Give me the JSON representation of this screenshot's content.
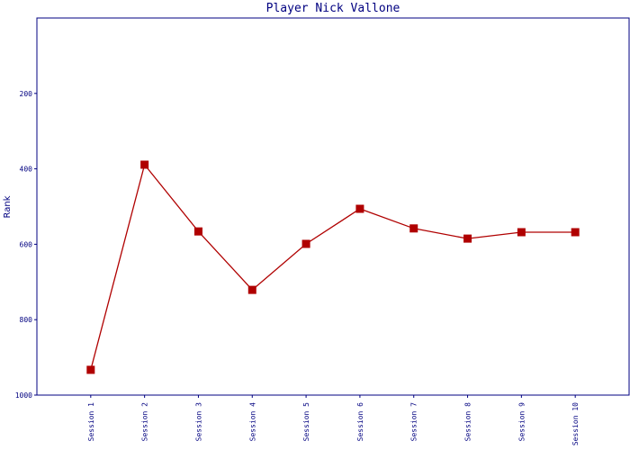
{
  "chart_data": {
    "type": "line",
    "title": "Player Nick Vallone",
    "y_label": "Rank",
    "categories": [
      "Session 1",
      "Session 2",
      "Session 3",
      "Session 4",
      "Session 5",
      "Session 6",
      "Session 7",
      "Session 8",
      "Session 9",
      "Session 10"
    ],
    "series": [
      {
        "name": "Rank",
        "color": "#b00000",
        "values": [
          933,
          389,
          566,
          721,
          599,
          506,
          558,
          585,
          568,
          568
        ]
      }
    ],
    "ylim": [
      1000,
      0
    ],
    "yticks": [
      200,
      400,
      600,
      800,
      1000
    ]
  }
}
